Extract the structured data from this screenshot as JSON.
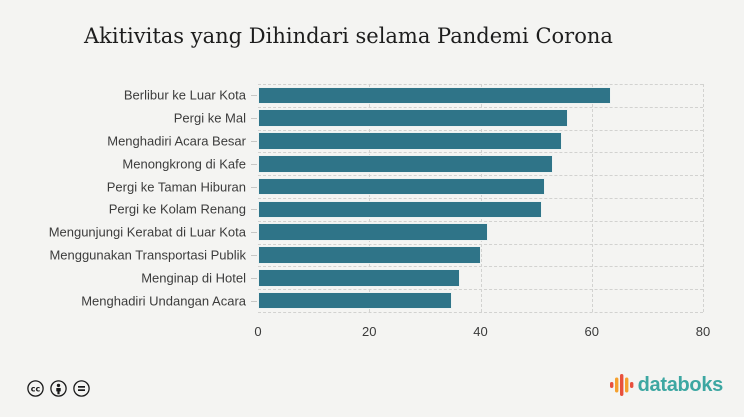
{
  "title": "Akitivitas yang Dihindari selama Pandemi Corona",
  "chart_data": {
    "type": "bar",
    "orientation": "horizontal",
    "title": "Akitivitas yang Dihindari selama Pandemi Corona",
    "categories": [
      "Berlibur ke Luar Kota",
      "Pergi ke Mal",
      "Menghadiri Acara Besar",
      "Menongkrong di Kafe",
      "Pergi ke Taman Hiburan",
      "Pergi ke Kolam Renang",
      "Mengunjungi Kerabat di Luar Kota",
      "Menggunakan Transportasi Publik",
      "Menginap di Hotel",
      "Menghadiri Undangan Acara"
    ],
    "values": [
      63.5,
      55.7,
      54.7,
      53.1,
      51.6,
      51.0,
      41.4,
      40.0,
      36.3,
      34.9
    ],
    "xlabel": "",
    "ylabel": "",
    "xlim": [
      0,
      80
    ],
    "x_ticks": [
      0,
      20,
      40,
      60,
      80
    ],
    "grid": "dashed horizontal and vertical",
    "legend": "none",
    "bar_color": "#2f7488"
  },
  "footer": {
    "license_icons": [
      "cc-icon",
      "attribution-icon",
      "equal-icon"
    ],
    "brand": "databoks",
    "brand_color": "#3da7a2",
    "logo_bar_colors": [
      "#e8503c",
      "#f5a02e",
      "#e8503c",
      "#f5a02e",
      "#e8503c"
    ]
  }
}
